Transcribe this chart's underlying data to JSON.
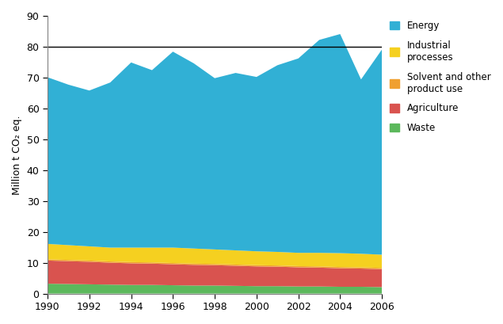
{
  "years": [
    1990,
    1991,
    1992,
    1993,
    1994,
    1995,
    1996,
    1997,
    1998,
    1999,
    2000,
    2001,
    2002,
    2003,
    2004,
    2005,
    2006
  ],
  "waste": [
    3.2,
    3.1,
    3.0,
    2.9,
    2.8,
    2.8,
    2.7,
    2.6,
    2.6,
    2.5,
    2.4,
    2.4,
    2.3,
    2.3,
    2.2,
    2.2,
    2.1
  ],
  "agriculture": [
    7.5,
    7.4,
    7.3,
    7.1,
    7.0,
    6.9,
    6.8,
    6.7,
    6.6,
    6.5,
    6.4,
    6.3,
    6.2,
    6.1,
    6.0,
    5.9,
    5.8
  ],
  "solvent": [
    0.4,
    0.4,
    0.4,
    0.4,
    0.4,
    0.4,
    0.4,
    0.4,
    0.4,
    0.4,
    0.4,
    0.4,
    0.4,
    0.4,
    0.4,
    0.4,
    0.4
  ],
  "industrial": [
    5.0,
    4.8,
    4.6,
    4.5,
    4.7,
    4.8,
    5.0,
    4.9,
    4.7,
    4.6,
    4.5,
    4.4,
    4.3,
    4.4,
    4.5,
    4.4,
    4.3
  ],
  "energy": [
    54.0,
    52.0,
    50.5,
    53.5,
    60.0,
    57.5,
    63.5,
    60.0,
    55.5,
    57.5,
    56.5,
    60.5,
    63.0,
    69.0,
    71.0,
    56.5,
    66.5
  ],
  "hline_y": 80,
  "colors": {
    "waste": "#5cb85c",
    "agriculture": "#d9534f",
    "solvent": "#f0a030",
    "industrial": "#f5d020",
    "energy": "#31b0d5"
  },
  "ylabel": "Million t CO₂ eq.",
  "ylim": [
    0,
    90
  ],
  "yticks": [
    0,
    10,
    20,
    30,
    40,
    50,
    60,
    70,
    80,
    90
  ],
  "xticks": [
    1990,
    1992,
    1994,
    1996,
    1998,
    2000,
    2002,
    2004,
    2006
  ],
  "legend_labels": [
    "Energy",
    "Industrial\nprocesses",
    "Solvent and other\nproduct use",
    "Agriculture",
    "Waste"
  ],
  "legend_colors": [
    "#31b0d5",
    "#f5d020",
    "#f0a030",
    "#d9534f",
    "#5cb85c"
  ],
  "hline_color": "#000000",
  "spine_color": "#808080"
}
